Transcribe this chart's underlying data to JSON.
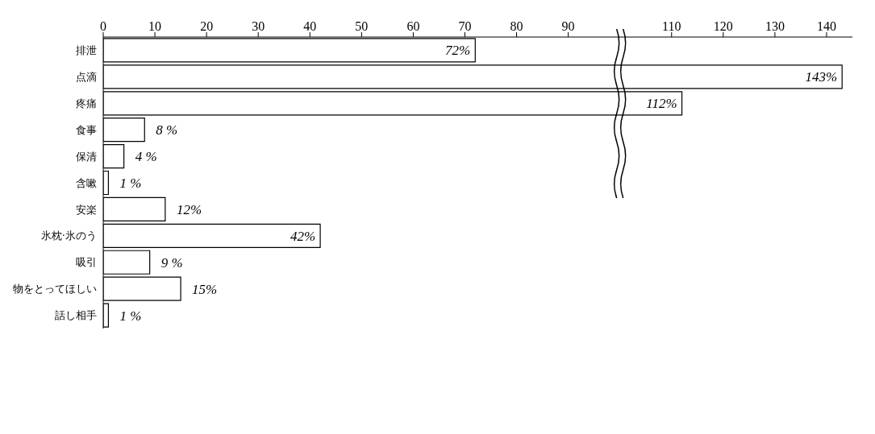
{
  "chart_data": {
    "type": "bar",
    "orientation": "horizontal",
    "categories": [
      "排泄",
      "点滴",
      "疼痛",
      "食事",
      "保清",
      "含嗽",
      "安楽",
      "氷枕·氷のう",
      "吸引",
      "物をとってほしい",
      "話し相手"
    ],
    "values": [
      72,
      143,
      112,
      8,
      4,
      1,
      12,
      42,
      9,
      15,
      1
    ],
    "value_labels": [
      "72%",
      "143%",
      "112%",
      "8 %",
      "4 %",
      "1 %",
      "12%",
      "42%",
      "9 %",
      "15%",
      "1 %"
    ],
    "color": "#ffffff",
    "xlim": [
      0,
      145
    ],
    "xticks": [
      0,
      10,
      20,
      30,
      40,
      50,
      60,
      70,
      80,
      90,
      110,
      120,
      130,
      140
    ],
    "grid": false
  }
}
